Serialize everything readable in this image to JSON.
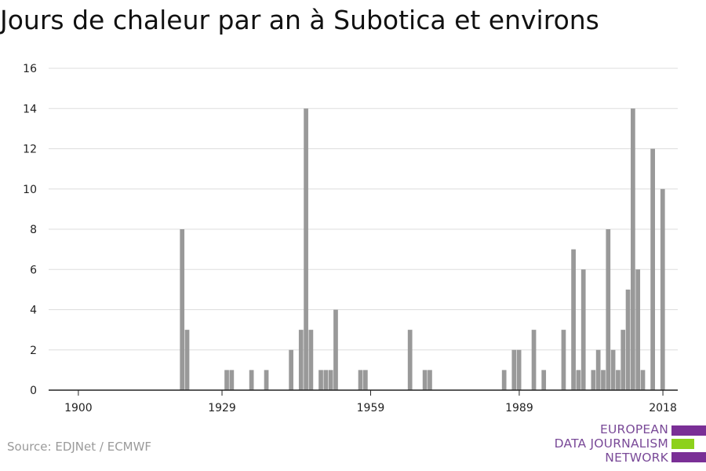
{
  "title": "Jours de chaleur par an à Subotica et environs",
  "source": "Source: EDJNet / ECMWF",
  "logo": {
    "line1": "EUROPEAN",
    "line2": "DATA JOURNALISM",
    "line3": "NETWORK"
  },
  "colors": {
    "bar": "#999999",
    "grid": "#dddddd",
    "axis": "#222222",
    "logo_purple": "#7a2f96",
    "logo_green": "#8dd11b"
  },
  "chart_data": {
    "type": "bar",
    "title": "Jours de chaleur par an à Subotica et environs",
    "xlabel": "",
    "ylabel": "",
    "xlim": [
      1894,
      2021
    ],
    "ylim": [
      0,
      16
    ],
    "y_ticks": [
      0,
      2,
      4,
      6,
      8,
      10,
      12,
      14,
      16
    ],
    "x_ticks": [
      1900,
      1929,
      1959,
      1989,
      2018
    ],
    "grid": true,
    "series": [
      {
        "x": [
          1921,
          1922,
          1930,
          1931,
          1935,
          1938,
          1943,
          1945,
          1946,
          1947,
          1949,
          1950,
          1951,
          1952,
          1957,
          1958,
          1967,
          1970,
          1971,
          1986,
          1988,
          1989,
          1992,
          1994,
          1998,
          2000,
          2001,
          2002,
          2004,
          2005,
          2006,
          2007,
          2008,
          2009,
          2010,
          2011,
          2012,
          2013,
          2014,
          2016,
          2018
        ],
        "values": [
          8,
          3,
          1,
          1,
          1,
          1,
          2,
          3,
          14,
          3,
          1,
          1,
          1,
          4,
          1,
          1,
          3,
          1,
          1,
          1,
          2,
          2,
          3,
          1,
          3,
          7,
          1,
          6,
          1,
          2,
          1,
          8,
          2,
          1,
          3,
          5,
          14,
          6,
          1,
          12,
          10
        ]
      }
    ]
  }
}
